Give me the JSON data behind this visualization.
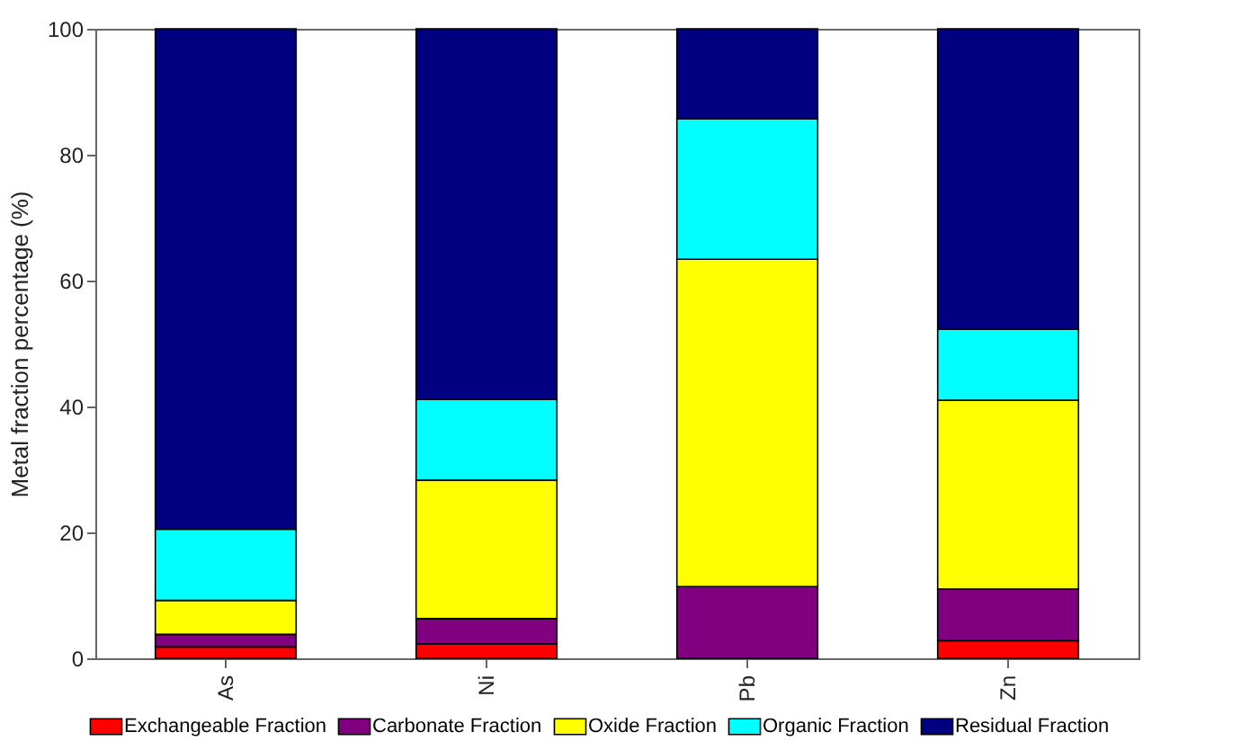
{
  "chart_data": {
    "type": "bar",
    "stacked": true,
    "ylabel": "Metal fraction percentage (%)",
    "categories": [
      "As",
      "Ni",
      "Pb",
      "Zn"
    ],
    "series": [
      {
        "name": "Exchangeable Fraction",
        "color": "#ff0000",
        "values": [
          1.8,
          2.3,
          0,
          2.8
        ]
      },
      {
        "name": "Carbonate Fraction",
        "color": "#800080",
        "values": [
          2.0,
          4.0,
          11.4,
          8.2
        ]
      },
      {
        "name": "Oxide Fraction",
        "color": "#ffff00",
        "values": [
          5.4,
          22.0,
          52.0,
          30.0
        ]
      },
      {
        "name": "Organic Fraction",
        "color": "#00ffff",
        "values": [
          11.3,
          12.8,
          22.3,
          11.3
        ]
      },
      {
        "name": "Residual Fraction",
        "color": "#000080",
        "values": [
          79.5,
          58.9,
          14.3,
          47.7
        ]
      }
    ],
    "ylim": [
      0,
      100
    ],
    "yticks": [
      0,
      20,
      40,
      60,
      80,
      100
    ],
    "grid": false,
    "legend": "bottom"
  }
}
